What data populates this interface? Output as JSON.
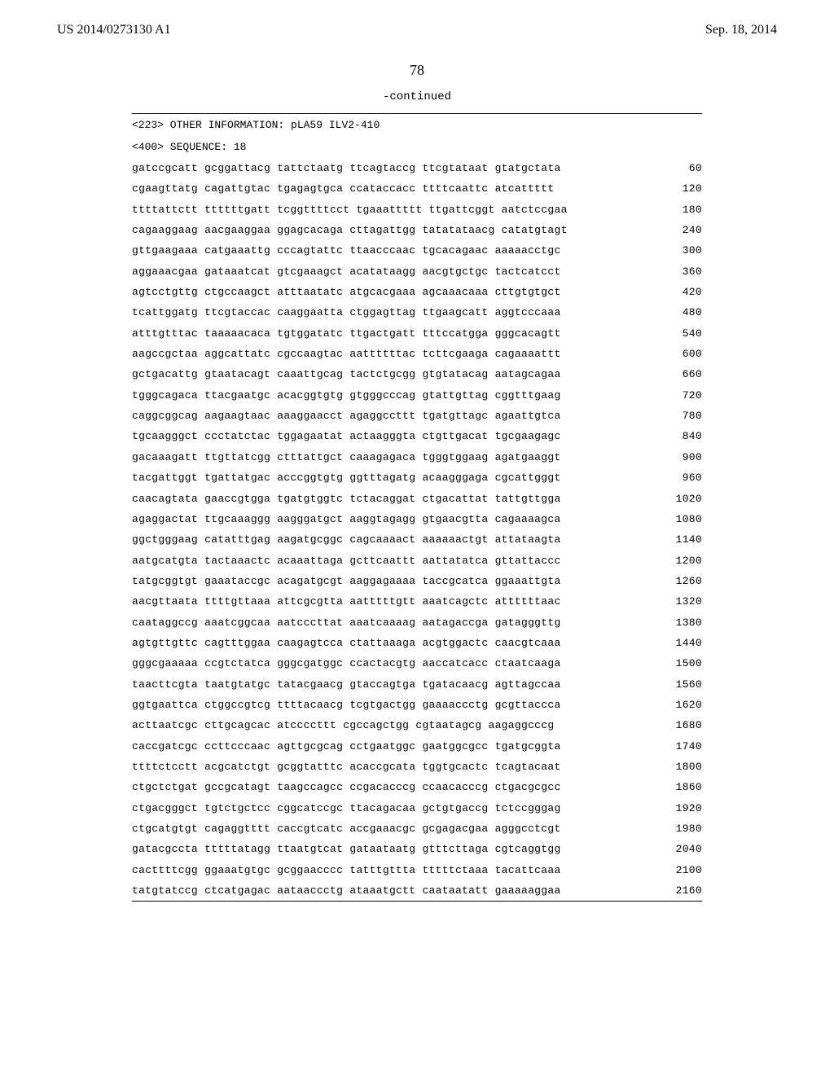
{
  "header": {
    "patent_number": "US 2014/0273130 A1",
    "date": "Sep. 18, 2014"
  },
  "page_number": "78",
  "continued_label": "-continued",
  "info_lines": [
    "<223> OTHER INFORMATION: pLA59 ILV2-410",
    "<400> SEQUENCE: 18"
  ],
  "sequence_rows": [
    {
      "groups": "gatccgcatt gcggattacg tattctaatg ttcagtaccg ttcgtataat gtatgctata",
      "pos": 60
    },
    {
      "groups": "cgaagttatg cagattgtac tgagagtgca ccataccacc ttttcaattc atcattttt",
      "pos": 120
    },
    {
      "groups": "ttttattctt ttttttgatt tcggttttcct tgaaattttt ttgattcggt aatctccgaa",
      "pos": 180
    },
    {
      "groups": "cagaaggaag aacgaaggaa ggagcacaga cttagattgg tatatataacg catatgtagt",
      "pos": 240
    },
    {
      "groups": "gttgaagaaa catgaaattg cccagtattc ttaacccaac tgcacagaac aaaaacctgc",
      "pos": 300
    },
    {
      "groups": "aggaaacgaa gataaatcat gtcgaaagct acatataagg aacgtgctgc tactcatcct",
      "pos": 360
    },
    {
      "groups": "agtcctgttg ctgccaagct atttaatatc atgcacgaaa agcaaacaaa cttgtgtgct",
      "pos": 420
    },
    {
      "groups": "tcattggatg ttcgtaccac caaggaatta ctggagttag ttgaagcatt aggtcccaaa",
      "pos": 480
    },
    {
      "groups": "atttgtttac taaaaacaca tgtggatatc ttgactgatt tttccatgga gggcacagtt",
      "pos": 540
    },
    {
      "groups": "aagccgctaa aggcattatc cgccaagtac aattttttac tcttcgaaga cagaaaattt",
      "pos": 600
    },
    {
      "groups": "gctgacattg gtaatacagt caaattgcag tactctgcgg gtgtatacag aatagcagaa",
      "pos": 660
    },
    {
      "groups": "tgggcagaca ttacgaatgc acacggtgtg gtgggcccag gtattgttag cggtttgaag",
      "pos": 720
    },
    {
      "groups": "caggcggcag aagaagtaac aaaggaacct agaggccttt tgatgttagc agaattgtca",
      "pos": 780
    },
    {
      "groups": "tgcaagggct ccctatctac tggagaatat actaagggta ctgttgacat tgcgaagagc",
      "pos": 840
    },
    {
      "groups": "gacaaagatt ttgttatcgg ctttattgct caaagagaca tgggtggaag agatgaaggt",
      "pos": 900
    },
    {
      "groups": "tacgattggt tgattatgac acccggtgtg ggtttagatg acaagggaga cgcattgggt",
      "pos": 960
    },
    {
      "groups": "caacagtata gaaccgtgga tgatgtggtc tctacaggat ctgacattat tattgttgga",
      "pos": 1020
    },
    {
      "groups": "agaggactat ttgcaaaggg aagggatgct aaggtagagg gtgaacgtta cagaaaagca",
      "pos": 1080
    },
    {
      "groups": "ggctgggaag catatttgag aagatgcggc cagcaaaact aaaaaactgt attataagta",
      "pos": 1140
    },
    {
      "groups": "aatgcatgta tactaaactc acaaattaga gcttcaattt aattatatca gttattaccc",
      "pos": 1200
    },
    {
      "groups": "tatgcggtgt gaaataccgc acagatgcgt aaggagaaaa taccgcatca ggaaattgta",
      "pos": 1260
    },
    {
      "groups": "aacgttaata ttttgttaaa attcgcgtta aatttttgtt aaatcagctc attttttaac",
      "pos": 1320
    },
    {
      "groups": "caataggccg aaatcggcaa aatcccttat aaatcaaaag aatagaccga gatagggttg",
      "pos": 1380
    },
    {
      "groups": "agtgttgttc cagtttggaa caagagtcca ctattaaaga acgtggactc caacgtcaaa",
      "pos": 1440
    },
    {
      "groups": "gggcgaaaaa ccgtctatca gggcgatggc ccactacgtg aaccatcacc ctaatcaaga",
      "pos": 1500
    },
    {
      "groups": "taacttcgta taatgtatgc tatacgaacg gtaccagtga tgatacaacg agttagccaa",
      "pos": 1560
    },
    {
      "groups": "ggtgaattca ctggccgtcg ttttacaacg tcgtgactgg gaaaaccctg gcgttaccca",
      "pos": 1620
    },
    {
      "groups": "acttaatcgc cttgcagcac atccccttt cgccagctgg cgtaatagcg aagaggcccg",
      "pos": 1680
    },
    {
      "groups": "caccgatcgc ccttcccaac agttgcgcag cctgaatggc gaatggcgcc tgatgcggta",
      "pos": 1740
    },
    {
      "groups": "ttttctcctt acgcatctgt gcggtatttc acaccgcata tggtgcactc tcagtacaat",
      "pos": 1800
    },
    {
      "groups": "ctgctctgat gccgcatagt taagccagcc ccgacacccg ccaacacccg ctgacgcgcc",
      "pos": 1860
    },
    {
      "groups": "ctgacgggct tgtctgctcc cggcatccgc ttacagacaa gctgtgaccg tctccgggag",
      "pos": 1920
    },
    {
      "groups": "ctgcatgtgt cagaggtttt caccgtcatc accgaaacgc gcgagacgaa agggcctcgt",
      "pos": 1980
    },
    {
      "groups": "gatacgccta tttttatagg ttaatgtcat gataataatg gtttcttaga cgtcaggtgg",
      "pos": 2040
    },
    {
      "groups": "cacttttcgg ggaaatgtgc gcggaacccc tatttgttta tttttctaaa tacattcaaa",
      "pos": 2100
    },
    {
      "groups": "tatgtatccg ctcatgagac aataaccctg ataaatgctt caataatatt gaaaaaggaa",
      "pos": 2160
    }
  ]
}
